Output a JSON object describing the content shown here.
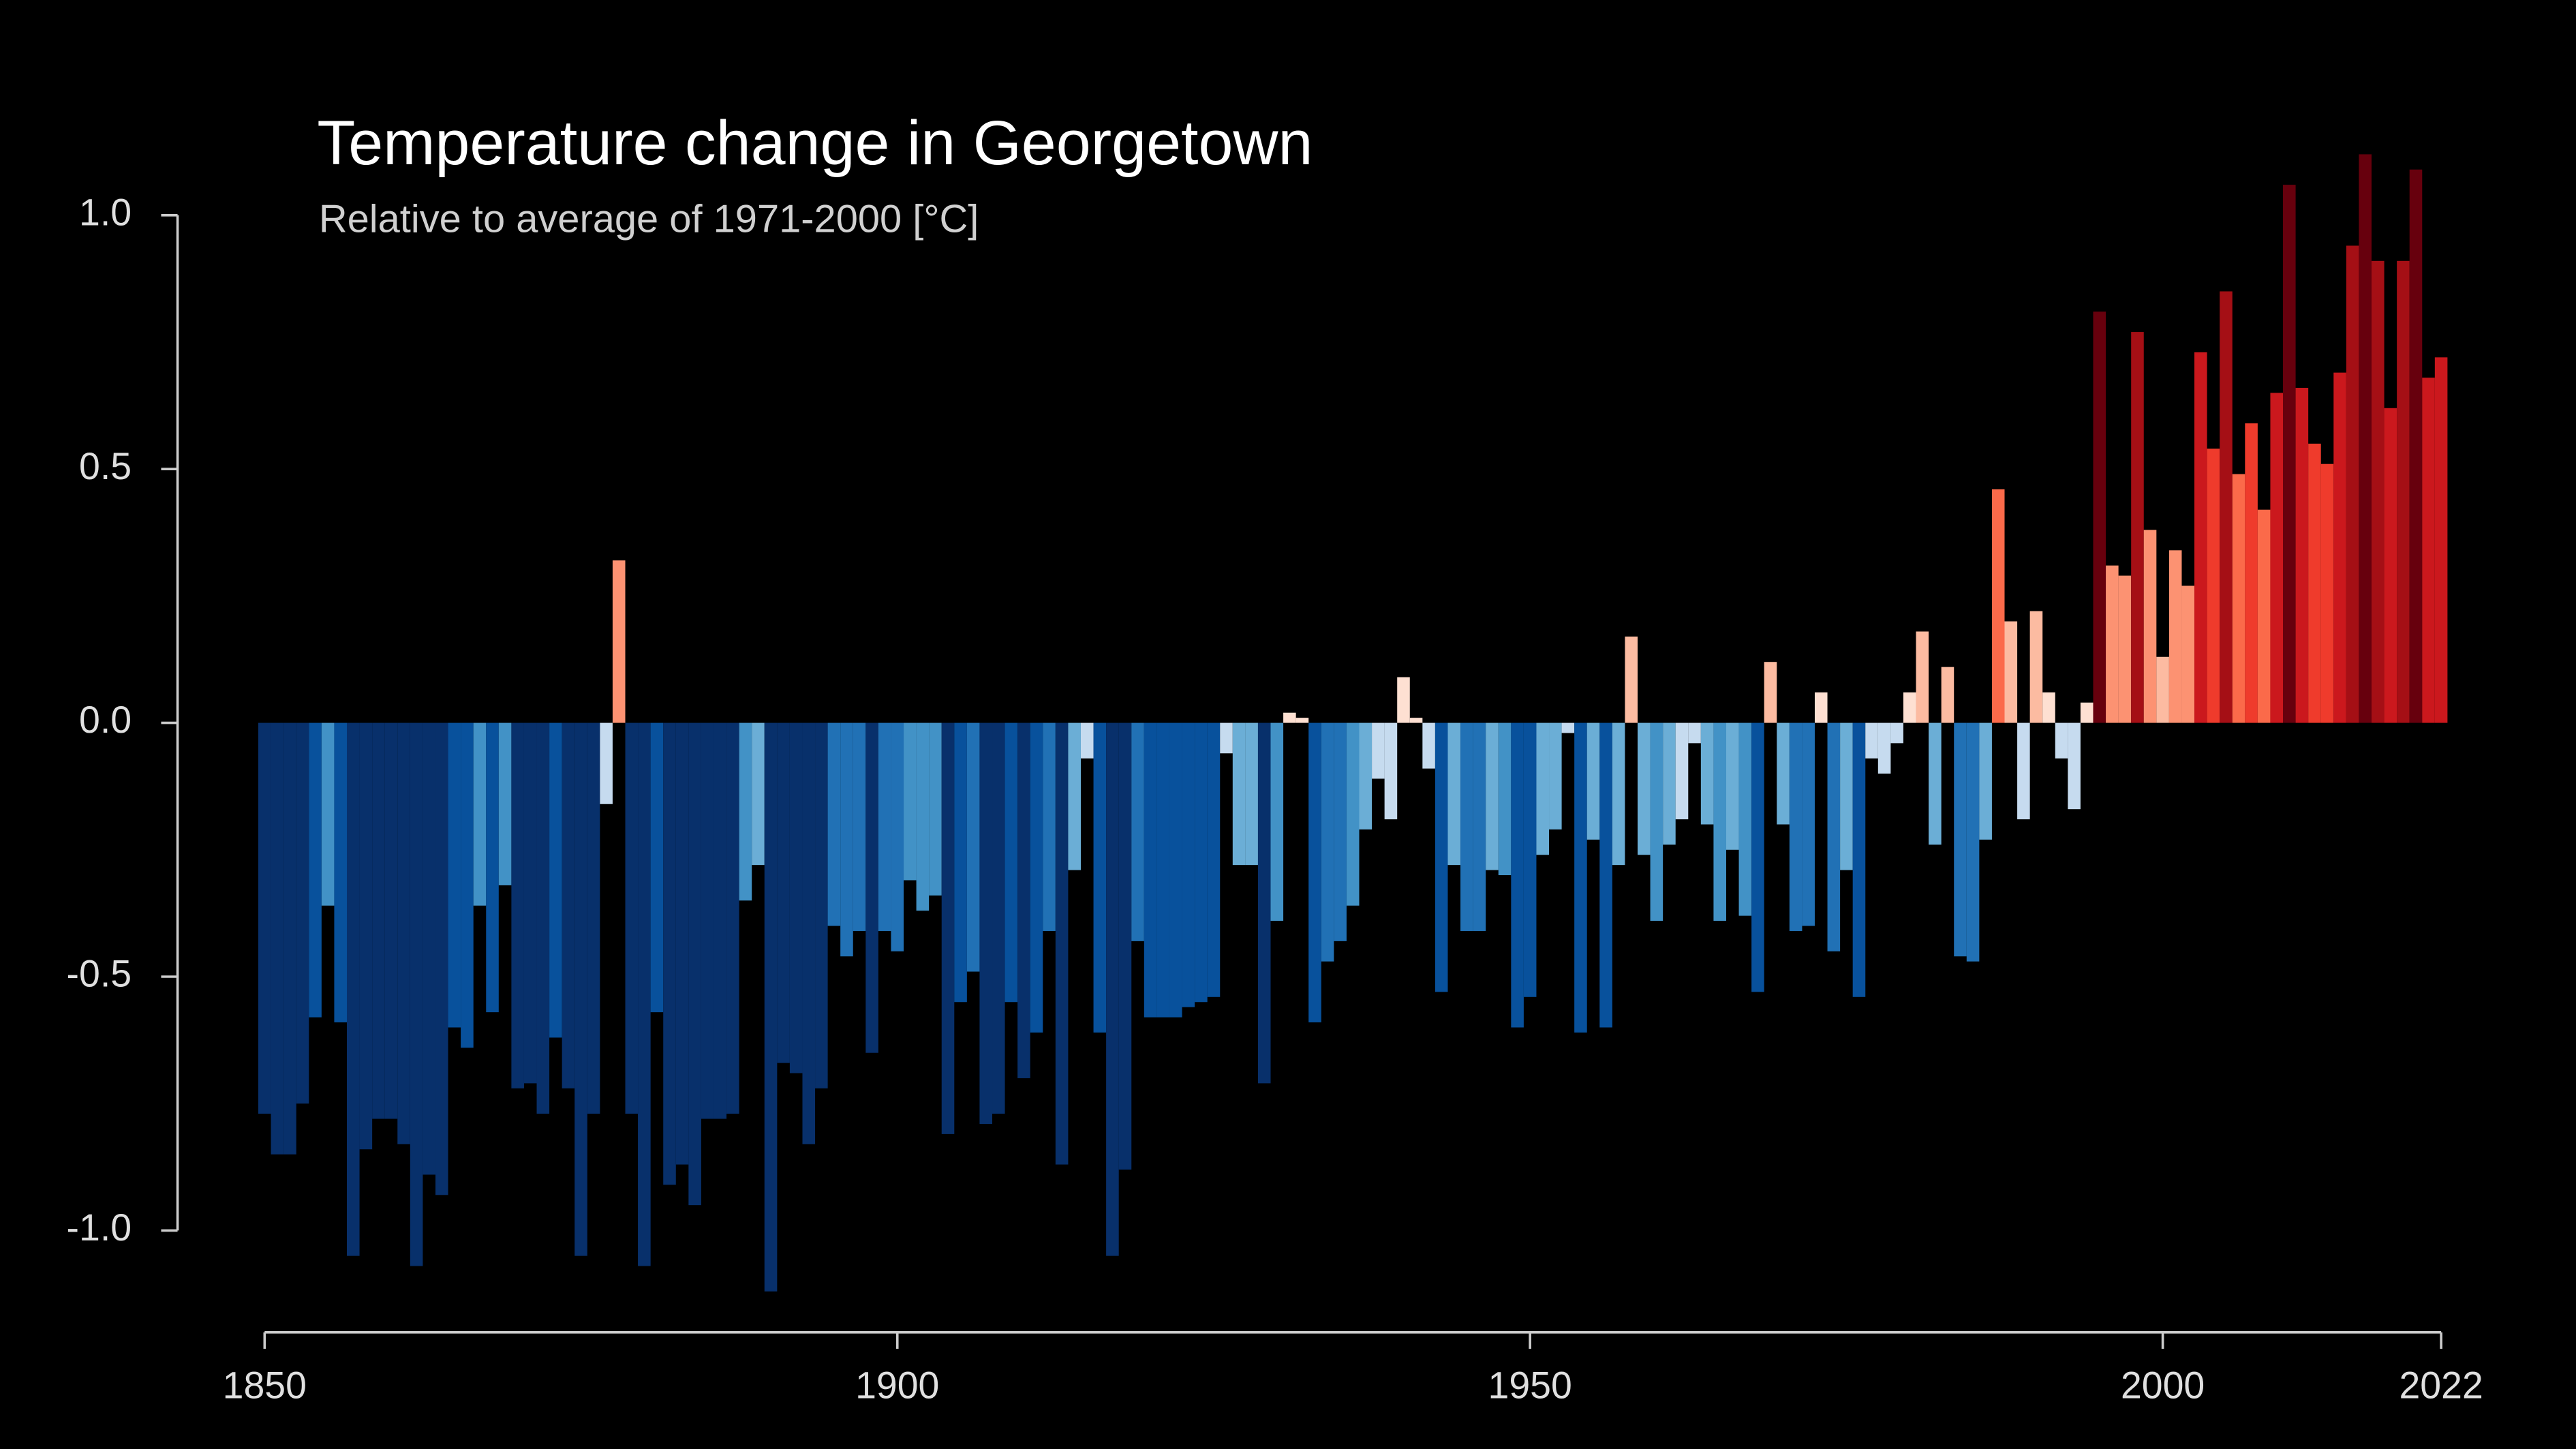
{
  "chart_data": {
    "type": "bar",
    "title": "Temperature change in Georgetown",
    "subtitle": "Relative to average of 1971-2000  [°C]",
    "x": [
      1850,
      1851,
      1852,
      1853,
      1854,
      1855,
      1856,
      1857,
      1858,
      1859,
      1860,
      1861,
      1862,
      1863,
      1864,
      1865,
      1866,
      1867,
      1868,
      1869,
      1870,
      1871,
      1872,
      1873,
      1874,
      1875,
      1876,
      1877,
      1878,
      1879,
      1880,
      1881,
      1882,
      1883,
      1884,
      1885,
      1886,
      1887,
      1888,
      1889,
      1890,
      1891,
      1892,
      1893,
      1894,
      1895,
      1896,
      1897,
      1898,
      1899,
      1900,
      1901,
      1902,
      1903,
      1904,
      1905,
      1906,
      1907,
      1908,
      1909,
      1910,
      1911,
      1912,
      1913,
      1914,
      1915,
      1916,
      1917,
      1918,
      1919,
      1920,
      1921,
      1922,
      1923,
      1924,
      1925,
      1926,
      1927,
      1928,
      1929,
      1930,
      1931,
      1932,
      1933,
      1934,
      1935,
      1936,
      1937,
      1938,
      1939,
      1940,
      1941,
      1942,
      1943,
      1944,
      1945,
      1946,
      1947,
      1948,
      1949,
      1950,
      1951,
      1952,
      1953,
      1954,
      1955,
      1956,
      1957,
      1958,
      1959,
      1960,
      1961,
      1962,
      1963,
      1964,
      1965,
      1966,
      1967,
      1968,
      1969,
      1970,
      1971,
      1972,
      1973,
      1974,
      1975,
      1976,
      1977,
      1978,
      1979,
      1980,
      1981,
      1982,
      1983,
      1984,
      1985,
      1986,
      1987,
      1988,
      1989,
      1990,
      1991,
      1992,
      1993,
      1994,
      1995,
      1996,
      1997,
      1998,
      1999,
      2000,
      2001,
      2002,
      2003,
      2004,
      2005,
      2006,
      2007,
      2008,
      2009,
      2010,
      2011,
      2012,
      2013,
      2014,
      2015,
      2016,
      2017,
      2018,
      2019,
      2020,
      2021,
      2022
    ],
    "values": [
      -0.77,
      -0.85,
      -0.85,
      -0.75,
      -0.58,
      -0.36,
      -0.59,
      -1.05,
      -0.84,
      -0.78,
      -0.78,
      -0.83,
      -1.07,
      -0.89,
      -0.93,
      -0.6,
      -0.64,
      -0.36,
      -0.57,
      -0.32,
      -0.72,
      -0.71,
      -0.77,
      -0.62,
      -0.72,
      -1.05,
      -0.77,
      -0.16,
      0.32,
      -0.77,
      -1.07,
      -0.57,
      -0.91,
      -0.87,
      -0.95,
      -0.78,
      -0.78,
      -0.77,
      -0.35,
      -0.28,
      -1.12,
      -0.67,
      -0.69,
      -0.83,
      -0.72,
      -0.4,
      -0.46,
      -0.41,
      -0.65,
      -0.41,
      -0.45,
      -0.31,
      -0.37,
      -0.34,
      -0.81,
      -0.55,
      -0.49,
      -0.79,
      -0.77,
      -0.55,
      -0.7,
      -0.61,
      -0.41,
      -0.87,
      -0.29,
      -0.07,
      -0.61,
      -1.05,
      -0.88,
      -0.43,
      -0.58,
      -0.58,
      -0.58,
      -0.56,
      -0.55,
      -0.54,
      -0.06,
      -0.28,
      -0.28,
      -0.71,
      -0.39,
      0.02,
      0.01,
      -0.59,
      -0.47,
      -0.43,
      -0.36,
      -0.21,
      -0.11,
      -0.19,
      0.09,
      0.01,
      -0.09,
      -0.53,
      -0.28,
      -0.41,
      -0.41,
      -0.29,
      -0.3,
      -0.6,
      -0.54,
      -0.26,
      -0.21,
      -0.02,
      -0.61,
      -0.23,
      -0.6,
      -0.28,
      0.17,
      -0.26,
      -0.39,
      -0.24,
      -0.19,
      -0.04,
      -0.2,
      -0.39,
      -0.25,
      -0.38,
      -0.53,
      0.12,
      -0.2,
      -0.41,
      -0.4,
      0.06,
      -0.45,
      -0.29,
      -0.54,
      -0.07,
      -0.1,
      -0.04,
      0.06,
      0.18,
      -0.24,
      0.11,
      -0.46,
      -0.47,
      -0.23,
      0.46,
      0.2,
      -0.19,
      0.22,
      0.06,
      -0.07,
      -0.17,
      0.04,
      0.81,
      0.31,
      0.29,
      0.77,
      0.38,
      0.13,
      0.34,
      0.27,
      0.73,
      0.54,
      0.85,
      0.49,
      0.59,
      0.42,
      0.65,
      1.06,
      0.66,
      0.55,
      0.51,
      0.69,
      0.94,
      1.12,
      0.91,
      0.62,
      0.91,
      1.09,
      0.68,
      0.72
    ],
    "colors": [
      "#08306b",
      "#08306b",
      "#08306b",
      "#08306b",
      "#08519c",
      "#4292c6",
      "#08519c",
      "#08306b",
      "#08306b",
      "#08306b",
      "#08306b",
      "#08306b",
      "#08306b",
      "#08306b",
      "#08306b",
      "#08519c",
      "#08519c",
      "#4292c6",
      "#08519c",
      "#4292c6",
      "#08306b",
      "#08306b",
      "#08306b",
      "#08519c",
      "#08306b",
      "#08306b",
      "#08306b",
      "#c6dbef",
      "#fc9272",
      "#08306b",
      "#08306b",
      "#08519c",
      "#08306b",
      "#08306b",
      "#08306b",
      "#08306b",
      "#08306b",
      "#08306b",
      "#4292c6",
      "#6baed6",
      "#08306b",
      "#08306b",
      "#08306b",
      "#08306b",
      "#08306b",
      "#2171b5",
      "#2171b5",
      "#2171b5",
      "#08306b",
      "#2171b5",
      "#2171b5",
      "#4292c6",
      "#4292c6",
      "#4292c6",
      "#08306b",
      "#08519c",
      "#2171b5",
      "#08306b",
      "#08306b",
      "#08519c",
      "#08306b",
      "#08519c",
      "#2171b5",
      "#08306b",
      "#6baed6",
      "#c6dbef",
      "#08519c",
      "#08306b",
      "#08306b",
      "#2171b5",
      "#08519c",
      "#08519c",
      "#08519c",
      "#08519c",
      "#08519c",
      "#08519c",
      "#c6dbef",
      "#6baed6",
      "#6baed6",
      "#08306b",
      "#4292c6",
      "#fee0d2",
      "#fee0d2",
      "#08519c",
      "#2171b5",
      "#2171b5",
      "#4292c6",
      "#6baed6",
      "#c6dbef",
      "#c6dbef",
      "#fee0d2",
      "#fee0d2",
      "#c6dbef",
      "#08519c",
      "#6baed6",
      "#2171b5",
      "#2171b5",
      "#6baed6",
      "#4292c6",
      "#08519c",
      "#08519c",
      "#6baed6",
      "#6baed6",
      "#c6dbef",
      "#08519c",
      "#6baed6",
      "#08519c",
      "#6baed6",
      "#fcbba1",
      "#6baed6",
      "#4292c6",
      "#6baed6",
      "#c6dbef",
      "#c6dbef",
      "#6baed6",
      "#4292c6",
      "#6baed6",
      "#4292c6",
      "#08519c",
      "#fcbba1",
      "#6baed6",
      "#2171b5",
      "#2171b5",
      "#fee0d2",
      "#2171b5",
      "#6baed6",
      "#08519c",
      "#c6dbef",
      "#c6dbef",
      "#c6dbef",
      "#fee0d2",
      "#fcbba1",
      "#6baed6",
      "#fcbba1",
      "#2171b5",
      "#2171b5",
      "#6baed6",
      "#fb6a4a",
      "#fcbba1",
      "#c6dbef",
      "#fcbba1",
      "#fee0d2",
      "#c6dbef",
      "#c6dbef",
      "#fee0d2",
      "#67000d",
      "#fc9272",
      "#fc9272",
      "#a50f15",
      "#fc9272",
      "#fcbba1",
      "#fc9272",
      "#fc9272",
      "#cb181d",
      "#ef3b2c",
      "#a50f15",
      "#fb6a4a",
      "#ef3b2c",
      "#fb6a4a",
      "#cb181d",
      "#67000d",
      "#cb181d",
      "#ef3b2c",
      "#ef3b2c",
      "#cb181d",
      "#a50f15",
      "#67000d",
      "#a50f15",
      "#cb181d",
      "#a50f15",
      "#67000d",
      "#cb181d",
      "#cb181d"
    ],
    "xlim": [
      1850,
      2022
    ],
    "xticks": [
      1850,
      1900,
      1950,
      2000,
      2022
    ],
    "ylim": [
      -1,
      1
    ],
    "yticks": [
      {
        "value": -1,
        "label": "-1.0"
      },
      {
        "value": -0.5,
        "label": "-0.5"
      },
      {
        "value": 0,
        "label": "0.0"
      },
      {
        "value": 0.5,
        "label": "0.5"
      },
      {
        "value": 1,
        "label": "1.0"
      }
    ]
  }
}
